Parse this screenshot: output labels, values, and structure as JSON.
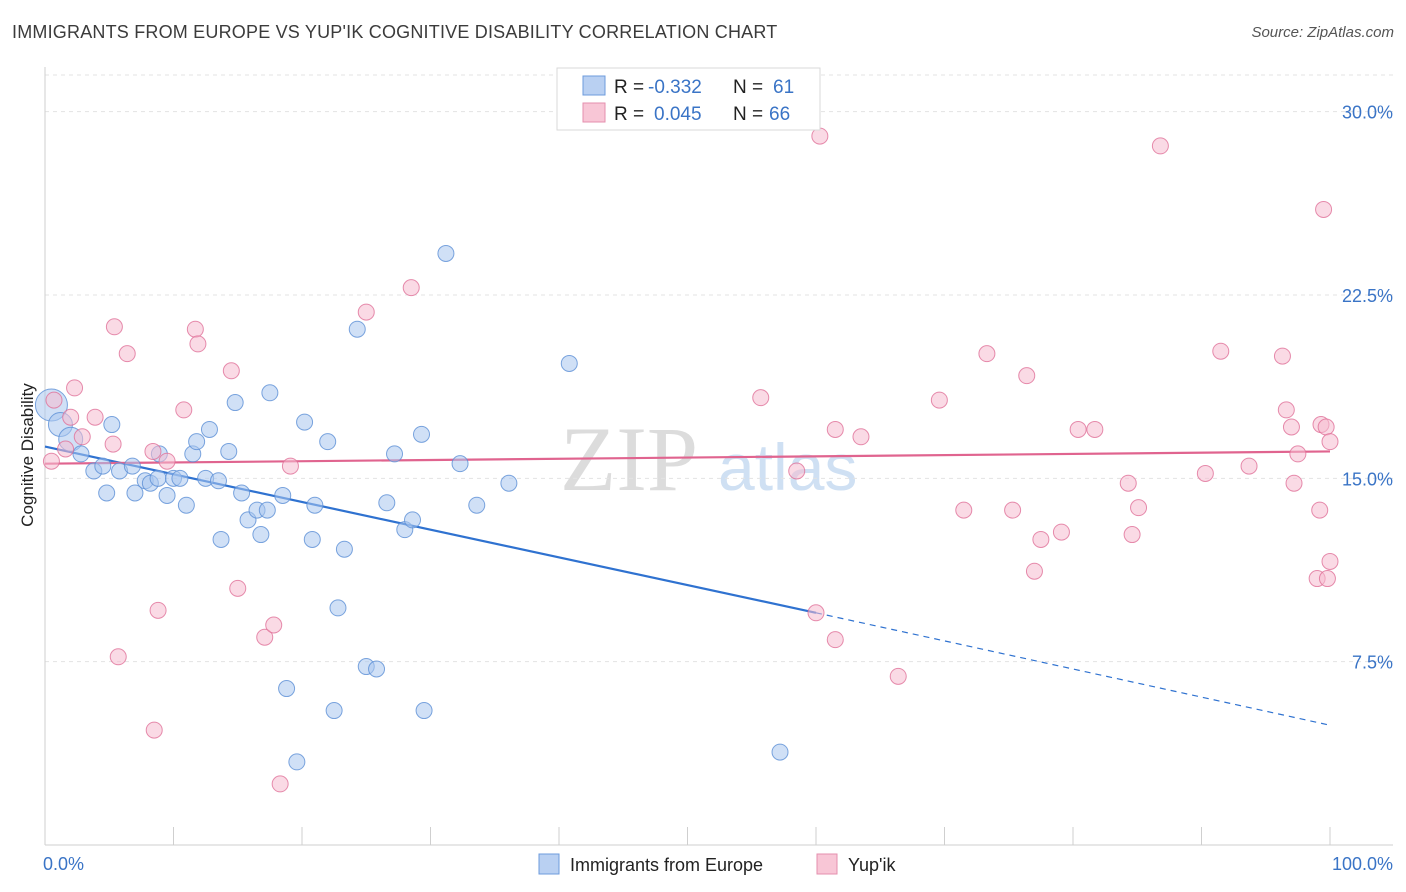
{
  "title": "IMMIGRANTS FROM EUROPE VS YUP'IK COGNITIVE DISABILITY CORRELATION CHART",
  "source": "Source: ZipAtlas.com",
  "watermark": {
    "zip": "ZIP",
    "atlas": "atlas"
  },
  "legend_box": {
    "rows": [
      {
        "r_label": "R = ",
        "r_value": "-0.332",
        "n_label": "N = ",
        "n_value": "61"
      },
      {
        "r_label": "R = ",
        "r_value": "0.045",
        "n_label": "N = ",
        "n_value": "66"
      }
    ]
  },
  "chart_data": {
    "type": "scatter",
    "title": "IMMIGRANTS FROM EUROPE VS YUP'IK COGNITIVE DISABILITY CORRELATION CHART",
    "xlabel": "",
    "ylabel": "Cognitive Disability",
    "xlim": [
      0,
      100
    ],
    "ylim": [
      0,
      31.5
    ],
    "x_tick_labels": [
      "0.0%",
      "100.0%"
    ],
    "y_ticks": [
      7.5,
      15.0,
      22.5,
      30.0
    ],
    "y_tick_labels": [
      "7.5%",
      "15.0%",
      "22.5%",
      "30.0%"
    ],
    "grid": true,
    "legend_position": "bottom-center",
    "colors": {
      "blue": "#5b8fd6",
      "blue_fill": "#a9c6ef",
      "pink": "#e07199",
      "pink_fill": "#f5bcd0",
      "axis_text": "#3a74c6"
    },
    "series": [
      {
        "name": "Immigrants from Europe",
        "color": "#5b8fd6",
        "trend": {
          "x": [
            0,
            60
          ],
          "y": [
            16.3,
            9.5
          ],
          "dashed_to": [
            100,
            4.9
          ]
        },
        "points": [
          [
            0.5,
            18.0
          ],
          [
            1.2,
            17.2
          ],
          [
            2.0,
            16.6
          ],
          [
            2.8,
            16.0
          ],
          [
            3.8,
            15.3
          ],
          [
            4.5,
            15.5
          ],
          [
            5.2,
            17.2
          ],
          [
            4.8,
            14.4
          ],
          [
            5.8,
            15.3
          ],
          [
            6.8,
            15.5
          ],
          [
            7.0,
            14.4
          ],
          [
            7.8,
            14.9
          ],
          [
            8.2,
            14.8
          ],
          [
            8.8,
            15.0
          ],
          [
            8.9,
            16.0
          ],
          [
            9.5,
            14.3
          ],
          [
            10.0,
            15.0
          ],
          [
            10.5,
            15.0
          ],
          [
            11.0,
            13.9
          ],
          [
            11.5,
            16.0
          ],
          [
            11.8,
            16.5
          ],
          [
            12.5,
            15.0
          ],
          [
            12.8,
            17.0
          ],
          [
            13.5,
            14.9
          ],
          [
            13.7,
            12.5
          ],
          [
            14.3,
            16.1
          ],
          [
            14.8,
            18.1
          ],
          [
            15.3,
            14.4
          ],
          [
            15.8,
            13.3
          ],
          [
            16.5,
            13.7
          ],
          [
            16.8,
            12.7
          ],
          [
            17.3,
            13.7
          ],
          [
            17.5,
            18.5
          ],
          [
            18.5,
            14.3
          ],
          [
            18.8,
            6.4
          ],
          [
            19.6,
            3.4
          ],
          [
            20.2,
            17.3
          ],
          [
            20.8,
            12.5
          ],
          [
            21.0,
            13.9
          ],
          [
            22.0,
            16.5
          ],
          [
            22.5,
            5.5
          ],
          [
            22.8,
            9.7
          ],
          [
            23.3,
            12.1
          ],
          [
            24.3,
            21.1
          ],
          [
            25.0,
            7.3
          ],
          [
            25.8,
            7.2
          ],
          [
            26.6,
            14.0
          ],
          [
            27.2,
            16.0
          ],
          [
            28.0,
            12.9
          ],
          [
            28.6,
            13.3
          ],
          [
            29.3,
            16.8
          ],
          [
            29.5,
            5.5
          ],
          [
            31.2,
            24.2
          ],
          [
            32.3,
            15.6
          ],
          [
            33.6,
            13.9
          ],
          [
            36.1,
            14.8
          ],
          [
            40.8,
            19.7
          ],
          [
            57.2,
            3.8
          ]
        ]
      },
      {
        "name": "Yup'ik",
        "color": "#e07199",
        "trend": {
          "x": [
            0,
            100
          ],
          "y": [
            15.6,
            16.1
          ]
        },
        "points": [
          [
            0.5,
            15.7
          ],
          [
            0.7,
            18.2
          ],
          [
            1.6,
            16.2
          ],
          [
            2.0,
            17.5
          ],
          [
            2.3,
            18.7
          ],
          [
            2.9,
            16.7
          ],
          [
            3.9,
            17.5
          ],
          [
            5.3,
            16.4
          ],
          [
            5.4,
            21.2
          ],
          [
            5.7,
            7.7
          ],
          [
            6.4,
            20.1
          ],
          [
            8.4,
            16.1
          ],
          [
            8.5,
            4.7
          ],
          [
            8.8,
            9.6
          ],
          [
            9.5,
            15.7
          ],
          [
            10.8,
            17.8
          ],
          [
            11.7,
            21.1
          ],
          [
            11.9,
            20.5
          ],
          [
            14.5,
            19.4
          ],
          [
            15.0,
            10.5
          ],
          [
            17.1,
            8.5
          ],
          [
            17.8,
            9.0
          ],
          [
            18.3,
            2.5
          ],
          [
            19.1,
            15.5
          ],
          [
            25.0,
            21.8
          ],
          [
            28.5,
            22.8
          ],
          [
            55.7,
            18.3
          ],
          [
            58.5,
            15.3
          ],
          [
            60.0,
            9.5
          ],
          [
            60.3,
            29.0
          ],
          [
            61.5,
            17.0
          ],
          [
            61.5,
            8.4
          ],
          [
            63.5,
            16.7
          ],
          [
            66.4,
            6.9
          ],
          [
            69.6,
            18.2
          ],
          [
            71.5,
            13.7
          ],
          [
            73.3,
            20.1
          ],
          [
            75.3,
            13.7
          ],
          [
            76.4,
            19.2
          ],
          [
            77.0,
            11.2
          ],
          [
            77.5,
            12.5
          ],
          [
            79.1,
            12.8
          ],
          [
            80.4,
            17.0
          ],
          [
            81.7,
            17.0
          ],
          [
            84.3,
            14.8
          ],
          [
            84.6,
            12.7
          ],
          [
            85.1,
            13.8
          ],
          [
            86.8,
            28.6
          ],
          [
            90.3,
            15.2
          ],
          [
            91.5,
            20.2
          ],
          [
            93.7,
            15.5
          ],
          [
            96.3,
            20.0
          ],
          [
            96.6,
            17.8
          ],
          [
            97.0,
            17.1
          ],
          [
            97.2,
            14.8
          ],
          [
            97.5,
            16.0
          ],
          [
            99.0,
            10.9
          ],
          [
            99.2,
            13.7
          ],
          [
            99.3,
            17.2
          ],
          [
            99.5,
            26.0
          ],
          [
            99.7,
            17.1
          ],
          [
            99.8,
            10.9
          ],
          [
            100.0,
            16.5
          ],
          [
            100.0,
            11.6
          ]
        ]
      }
    ]
  }
}
